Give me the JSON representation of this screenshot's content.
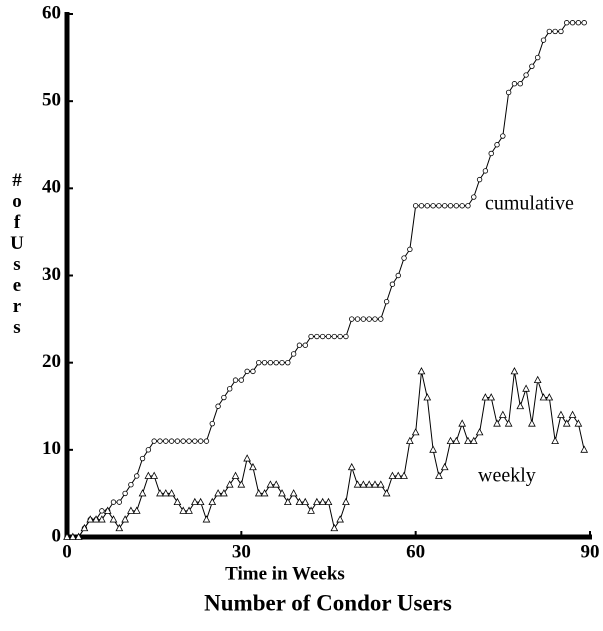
{
  "chart_data": {
    "type": "line",
    "title": "Number of Condor Users",
    "xlabel": "Time in Weeks",
    "ylabel": "# of Users",
    "x": [
      0,
      1,
      2,
      3,
      4,
      5,
      6,
      7,
      8,
      9,
      10,
      11,
      12,
      13,
      14,
      15,
      16,
      17,
      18,
      19,
      20,
      21,
      22,
      23,
      24,
      25,
      26,
      27,
      28,
      29,
      30,
      31,
      32,
      33,
      34,
      35,
      36,
      37,
      38,
      39,
      40,
      41,
      42,
      43,
      44,
      45,
      46,
      47,
      48,
      49,
      50,
      51,
      52,
      53,
      54,
      55,
      56,
      57,
      58,
      59,
      60,
      61,
      62,
      63,
      64,
      65,
      66,
      67,
      68,
      69,
      70,
      71,
      72,
      73,
      74,
      75,
      76,
      77,
      78,
      79,
      80,
      81,
      82,
      83,
      84,
      85,
      86,
      87,
      88,
      89
    ],
    "series": [
      {
        "name": "cumulative",
        "color": "#000000",
        "marker": "circle",
        "values": [
          0,
          0,
          0,
          1,
          2,
          2,
          3,
          3,
          4,
          4,
          5,
          6,
          7,
          9,
          10,
          11,
          11,
          11,
          11,
          11,
          11,
          11,
          11,
          11,
          11,
          13,
          15,
          16,
          17,
          18,
          18,
          19,
          19,
          20,
          20,
          20,
          20,
          20,
          20,
          21,
          22,
          22,
          23,
          23,
          23,
          23,
          23,
          23,
          23,
          25,
          25,
          25,
          25,
          25,
          25,
          27,
          29,
          30,
          32,
          33,
          38,
          38,
          38,
          38,
          38,
          38,
          38,
          38,
          38,
          38,
          39,
          41,
          42,
          44,
          45,
          46,
          51,
          52,
          52,
          53,
          54,
          55,
          57,
          58,
          58,
          58,
          59,
          59,
          59,
          59
        ]
      },
      {
        "name": "weekly",
        "color": "#000000",
        "marker": "triangle",
        "values": [
          0,
          0,
          0,
          1,
          2,
          2,
          2,
          3,
          2,
          1,
          2,
          3,
          3,
          5,
          7,
          7,
          5,
          5,
          5,
          4,
          3,
          3,
          4,
          4,
          2,
          4,
          5,
          5,
          6,
          7,
          6,
          9,
          8,
          5,
          5,
          6,
          6,
          5,
          4,
          5,
          4,
          4,
          3,
          4,
          4,
          4,
          1,
          2,
          4,
          8,
          6,
          6,
          6,
          6,
          6,
          5,
          7,
          7,
          7,
          11,
          12,
          19,
          16,
          10,
          7,
          8,
          11,
          11,
          13,
          11,
          11,
          12,
          16,
          16,
          13,
          14,
          13,
          19,
          15,
          17,
          13,
          18,
          16,
          16,
          11,
          14,
          13,
          14,
          13,
          10
        ]
      }
    ],
    "annotations": [
      "cumulative",
      "weekly"
    ],
    "xlim": [
      0,
      90
    ],
    "xticks": [
      0,
      30,
      60,
      90
    ],
    "ylim": [
      0,
      60
    ],
    "yticks": [
      0,
      10,
      20,
      30,
      40,
      50,
      60
    ]
  }
}
